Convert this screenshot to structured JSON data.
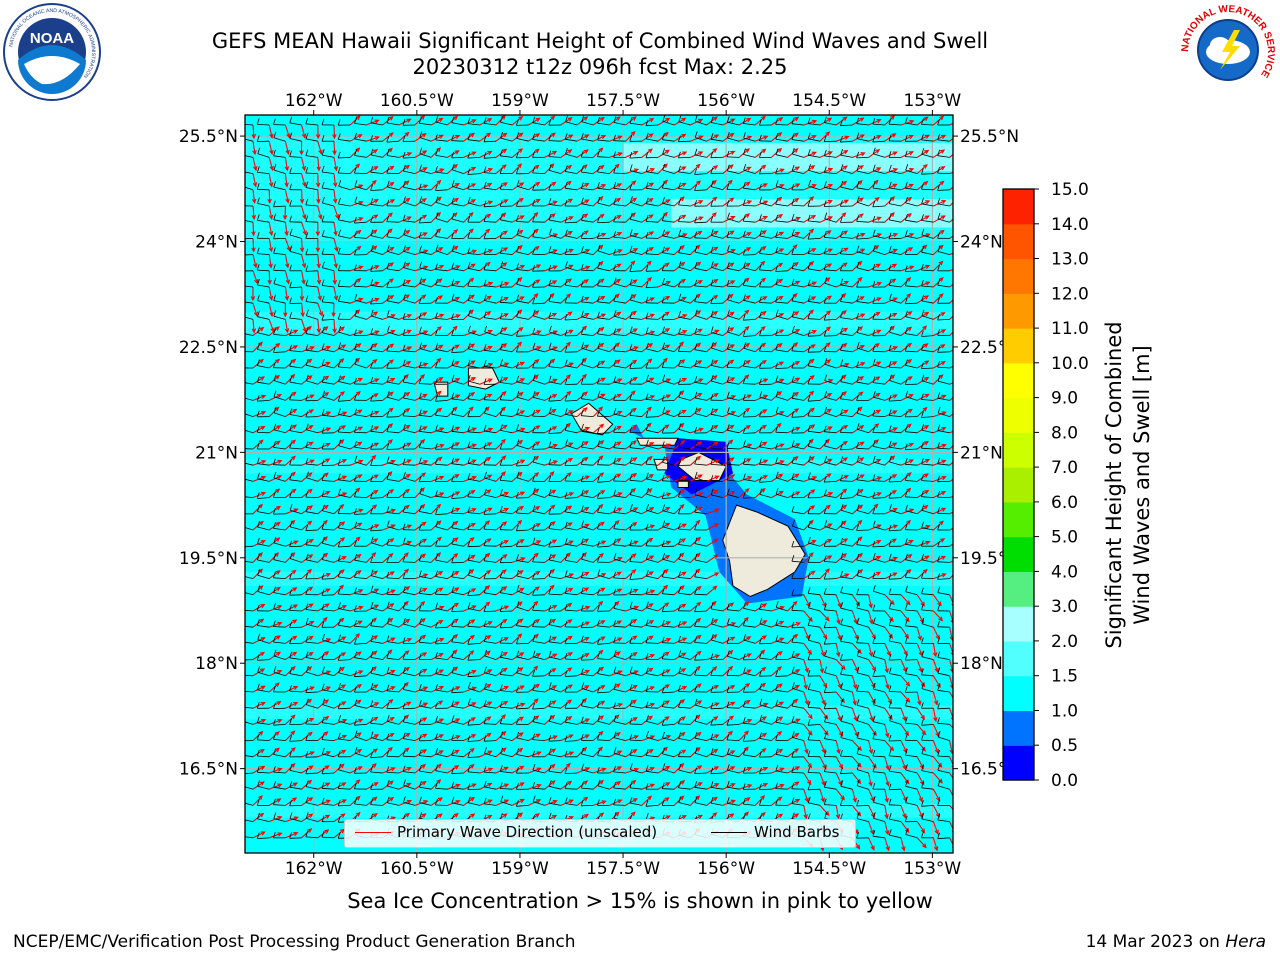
{
  "title": {
    "line1": "GEFS MEAN Hawaii Significant Height of Combined Wind Waves and Swell",
    "line2": "20230312 t12z 096h fcst   Max: 2.25"
  },
  "logos": {
    "left": {
      "icon": "noaa-logo",
      "ring_text": "NATIONAL OCEANIC AND ATMOSPHERIC ADMINISTRATION",
      "bottom_text": "U.S. DEPARTMENT OF COMMERCE",
      "center_text": "NOAA"
    },
    "right": {
      "icon": "nws-logo",
      "ring_text": "NATIONAL WEATHER SERVICE"
    }
  },
  "map": {
    "lon_ticks": [
      "162°W",
      "160.5°W",
      "159°W",
      "157.5°W",
      "156°W",
      "154.5°W",
      "153°W"
    ],
    "lat_ticks": [
      "25.5°N",
      "24°N",
      "22.5°N",
      "21°N",
      "19.5°N",
      "18°N",
      "16.5°N"
    ],
    "extent": {
      "lon_min": -163.0,
      "lon_max": -152.7,
      "lat_min": 15.3,
      "lat_max": 25.8
    },
    "ocean_color": "#00ffff",
    "land_color": "#efebdc",
    "legend": {
      "wave_direction_label": "Primary Wave Direction (unscaled)",
      "wind_barbs_label": "Wind Barbs",
      "wave_direction_color": "#ff0000",
      "wind_barbs_color": "#000000"
    }
  },
  "colorbar": {
    "title_line1": "Significant Height of Combined",
    "title_line2": "Wind Waves and Swell [m]",
    "ticks": [
      "15.0",
      "14.0",
      "13.0",
      "12.0",
      "11.0",
      "10.0",
      "9.0",
      "8.0",
      "7.0",
      "6.0",
      "5.0",
      "4.0",
      "3.0",
      "2.0",
      "1.5",
      "1.0",
      "0.5",
      "0.0"
    ],
    "colors": [
      "#0000ff",
      "#0073ff",
      "#00ffff",
      "#52ffff",
      "#a8ffff",
      "#55ee80",
      "#00dd00",
      "#55ee00",
      "#aaee00",
      "#ccff00",
      "#eeff00",
      "#ffff00",
      "#ffcc00",
      "#ff9900",
      "#ff7700",
      "#ff5500",
      "#ff2200"
    ]
  },
  "sea_ice_note": "Sea Ice Concentration > 15% is shown in pink to yellow",
  "footer": {
    "left": "NCEP/EMC/Verification Post Processing Product Generation Branch",
    "right_prefix": "14 Mar 2023 on ",
    "right_host": "Hera"
  }
}
